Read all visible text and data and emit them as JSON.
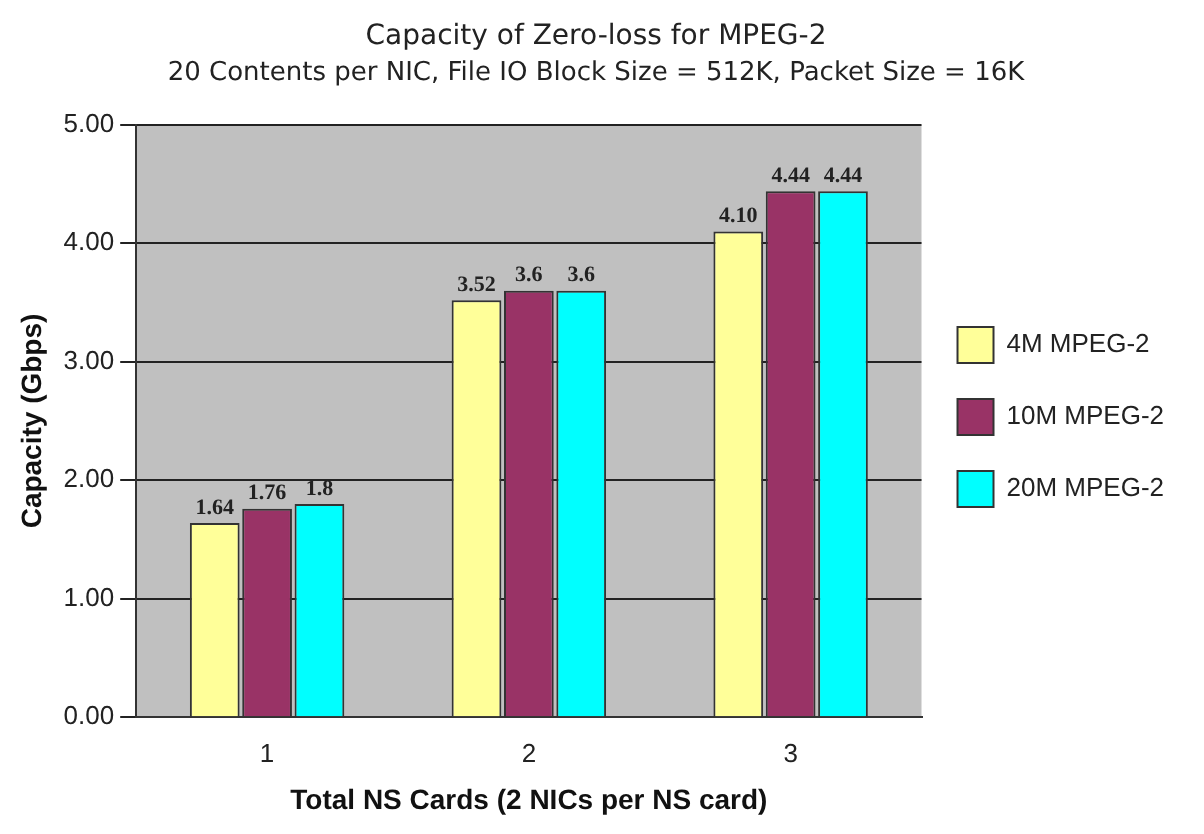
{
  "chart_data": {
    "type": "bar",
    "title": "Capacity of Zero-loss for MPEG-2",
    "subtitle": "20 Contents per NIC, File IO Block Size = 512K, Packet Size = 16K",
    "xlabel": "Total NS Cards (2 NICs per NS card)",
    "ylabel": "Capacity (Gbps)",
    "categories": [
      "1",
      "2",
      "3"
    ],
    "series": [
      {
        "name": "4M MPEG-2",
        "color": "#ffff99",
        "values": [
          1.64,
          3.52,
          4.1
        ],
        "value_labels": [
          "1.64",
          "3.52",
          "4.10"
        ]
      },
      {
        "name": "10M MPEG-2",
        "color": "#993366",
        "values": [
          1.76,
          3.6,
          4.44
        ],
        "value_labels": [
          "1.76",
          "3.6",
          "4.44"
        ]
      },
      {
        "name": "20M MPEG-2",
        "color": "#00ffff",
        "values": [
          1.8,
          3.6,
          4.44
        ],
        "value_labels": [
          "1.8",
          "3.6",
          "4.44"
        ]
      }
    ],
    "ylim": [
      0,
      5
    ],
    "yticks": [
      {
        "value": 0,
        "label": "0.00"
      },
      {
        "value": 1,
        "label": "1.00"
      },
      {
        "value": 2,
        "label": "2.00"
      },
      {
        "value": 3,
        "label": "3.00"
      },
      {
        "value": 4,
        "label": "4.00"
      },
      {
        "value": 5,
        "label": "5.00"
      }
    ],
    "grid": "y",
    "legend": "right"
  }
}
